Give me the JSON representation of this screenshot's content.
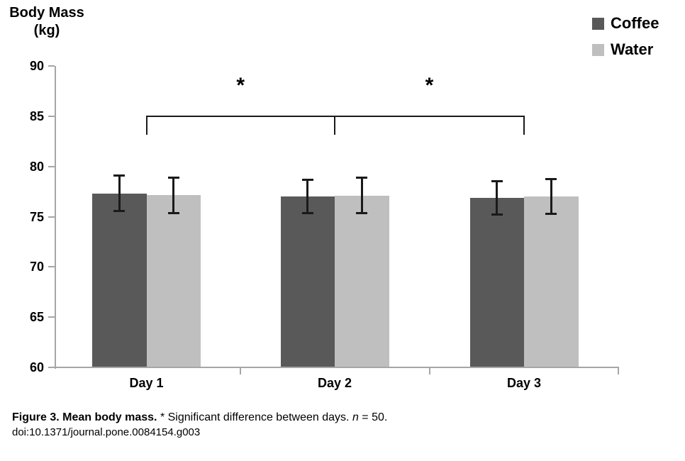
{
  "figure": {
    "y_axis_title_line1": "Body Mass",
    "y_axis_title_line2": "(kg)",
    "caption_bold": "Figure 3. Mean body mass.",
    "caption_regular": " * Significant difference between days. ",
    "caption_italic_n": "n",
    "caption_after_n": " = 50.",
    "caption_doi": "doi:10.1371/journal.pone.0084154.g003"
  },
  "legend": {
    "items": [
      {
        "label": "Coffee",
        "color": "#595959"
      },
      {
        "label": "Water",
        "color": "#bfbfbf"
      }
    ]
  },
  "chart_data": {
    "type": "bar",
    "title": "",
    "ylabel": "Body Mass (kg)",
    "xlabel": "",
    "categories": [
      "Day 1",
      "Day 2",
      "Day 3"
    ],
    "series": [
      {
        "name": "Coffee",
        "color": "#595959",
        "values": [
          77.3,
          77.0,
          76.9
        ],
        "errors": [
          1.8,
          1.7,
          1.7
        ]
      },
      {
        "name": "Water",
        "color": "#bfbfbf",
        "values": [
          77.15,
          77.1,
          77.0
        ],
        "errors": [
          1.8,
          1.8,
          1.75
        ]
      }
    ],
    "ylim": [
      60,
      90
    ],
    "yticks": [
      90,
      85,
      80,
      75,
      70,
      65,
      60
    ],
    "grid": false,
    "legend_position": "top-right",
    "axis_color": "#a6a6a6",
    "error_bar_color": "#1a1a1a",
    "significance_label": "*",
    "annotations": [
      {
        "type": "significance-bracket",
        "between": [
          "Day 1",
          "Day 2"
        ],
        "label": "*"
      },
      {
        "type": "significance-bracket",
        "between": [
          "Day 2",
          "Day 3"
        ],
        "label": "*"
      }
    ]
  }
}
